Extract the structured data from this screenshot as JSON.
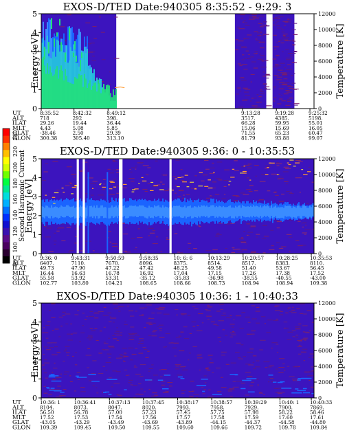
{
  "colorbar": {
    "label": "Second Harmonic Current",
    "ticks": [
      "240",
      "220",
      "200",
      "180",
      "160",
      "140",
      "120",
      "100",
      "80"
    ],
    "colors": [
      "#000000",
      "#2a0030",
      "#4a0060",
      "#5a0a8a",
      "#3a10b0",
      "#1010d0",
      "#0030ff",
      "#0070ff",
      "#00b0ff",
      "#00dddd",
      "#00e890",
      "#00ff40",
      "#70ff00",
      "#d0ff00",
      "#ffff00",
      "#ffc000",
      "#ff8000",
      "#ff3000",
      "#ff0000"
    ]
  },
  "colors": {
    "background": "#3c14be",
    "noise": "#7a1e6a",
    "gap": "#ffffff",
    "green": "#22e07a",
    "cyan": "#28c8d8",
    "blue": "#1a64ff",
    "lightblue": "#3a8cff",
    "orange": "#ff9a30",
    "yellow": "#e8d040"
  },
  "chart_data": [
    {
      "type": "heatmap",
      "title": "EXOS-D/TED   Date:940305  8:35:52 - 9:29: 3",
      "ylabel": "Energy [eV]",
      "ylabel_right": "Temperature [K]",
      "ylim": [
        0,
        5
      ],
      "y_ticks": [
        "0",
        "1",
        "2",
        "3",
        "4",
        "5"
      ],
      "y2lim": [
        0,
        12000
      ],
      "y2_ticks": [
        "0",
        "2000",
        "4000",
        "6000",
        "8000",
        "10000",
        "12000"
      ],
      "data_intervals": [
        [
          0.0,
          0.275
        ],
        [
          0.71,
          0.825
        ],
        [
          0.848,
          0.928
        ]
      ],
      "ephemeris": {
        "labels": [
          "UT",
          "ALT",
          "ILAT",
          "MLT",
          "GLAT",
          "GLON"
        ],
        "columns": [
          {
            "x": 0.0,
            "values": [
              "8:35:52",
              "718",
              "29.26",
              "4.43",
              "-38.46",
              "300.38"
            ]
          },
          {
            "x": 0.12,
            "values": [
              "8:42:32",
              "292",
              "19.44",
              "5.08",
              "2.50",
              "305.40"
            ]
          },
          {
            "x": 0.245,
            "values": [
              "8:49:12",
              "398.",
              "36.44",
              "5.85",
              "29.39",
              "313.10"
            ]
          },
          {
            "x": 0.738,
            "values": [
              "9:13:28",
              "3517.",
              "66.28",
              "15.06",
              "71.55",
              "81.79"
            ]
          },
          {
            "x": 0.862,
            "values": [
              "9:19:28",
              "4385.",
              "59.95",
              "15.69",
              "65.23",
              "93.88"
            ]
          },
          {
            "x": 0.985,
            "values": [
              "9:25:32",
              "5198.",
              "55.01",
              "16.05",
              "60.47",
              "99.07"
            ]
          }
        ]
      }
    },
    {
      "type": "heatmap",
      "title": "EXOS-D/TED   Date:940305  9:36: 0 - 10:35:53",
      "ylabel": "Energy [eV]",
      "ylabel_right": "Temperature [K]",
      "ylim": [
        0,
        5
      ],
      "y_ticks": [
        "0",
        "1",
        "2",
        "3",
        "4",
        "5"
      ],
      "y2lim": [
        0,
        12000
      ],
      "y2_ticks": [
        "0",
        "2000",
        "4000",
        "6000",
        "8000",
        "10000",
        "12000"
      ],
      "gaps": [
        [
          0.13,
          0.138
        ],
        [
          0.152,
          0.16
        ],
        [
          0.285,
          0.298
        ],
        [
          0.47,
          0.478
        ]
      ],
      "ephemeris": {
        "labels": [
          "UT",
          "ALT",
          "ILAT",
          "MLT",
          "GLAT",
          "GLON"
        ],
        "columns": [
          {
            "x": 0.0,
            "values": [
              "9:36: 0",
              "6407.",
              "49.73",
              "16.44",
              "55.58",
              "102.77"
            ]
          },
          {
            "x": 0.115,
            "values": [
              "9:43:31",
              "7110.",
              "47.90",
              "16.63",
              "53.92",
              "103.80"
            ]
          },
          {
            "x": 0.24,
            "values": [
              "9:50:59",
              "7670.",
              "47.22",
              "16.78",
              "53.31",
              "104.21"
            ]
          },
          {
            "x": 0.365,
            "values": [
              "9:58:35",
              "8096.",
              "47.42",
              "16.92",
              "-35.12",
              "108.65"
            ]
          },
          {
            "x": 0.49,
            "values": [
              "10: 6: 6",
              "8375.",
              "48.25",
              "17.04",
              "-35.83",
              "108.66"
            ]
          },
          {
            "x": 0.615,
            "values": [
              "10:13:29",
              "8514.",
              "49.58",
              "17.15",
              "-36.98",
              "108.73"
            ]
          },
          {
            "x": 0.74,
            "values": [
              "10:20:57",
              "8517.",
              "51.40",
              "17.26",
              "-38.55",
              "108.94"
            ]
          },
          {
            "x": 0.865,
            "values": [
              "10:28:25",
              "8383.",
              "53.67",
              "17.38",
              "-40.55",
              "108.94"
            ]
          },
          {
            "x": 0.99,
            "values": [
              "10:35:53",
              "8110.",
              "56.45",
              "17.52",
              "-43.00",
              "109.38"
            ]
          }
        ]
      }
    },
    {
      "type": "heatmap",
      "title": "EXOS-D/TED   Date:940305  10:36: 1 - 10:40:33",
      "ylabel": "Energy [eV]",
      "ylabel_right": "Temperature [K]",
      "ylim": [
        0,
        5
      ],
      "y_ticks": [
        "0",
        "1",
        "2",
        "3",
        "4",
        "5"
      ],
      "y2lim": [
        0,
        12000
      ],
      "y2_ticks": [
        "0",
        "2000",
        "4000",
        "6000",
        "8000",
        "10000",
        "12000"
      ],
      "ephemeris": {
        "labels": [
          "UT",
          "ALT",
          "ILAT",
          "MLT",
          "GLAT",
          "GLON"
        ],
        "columns": [
          {
            "x": 0.0,
            "values": [
              "10:36: 1",
              "8104.",
              "56.50",
              "17.52",
              "-43.05",
              "109.39"
            ]
          },
          {
            "x": 0.125,
            "values": [
              "10:36:41",
              "8073.",
              "56.78",
              "17.53",
              "-43.29",
              "109.45"
            ]
          },
          {
            "x": 0.25,
            "values": [
              "10:37:13",
              "8047.",
              "57.00",
              "17.54",
              "-43.49",
              "109.50"
            ]
          },
          {
            "x": 0.375,
            "values": [
              "10:37:45",
              "8020.",
              "57.23",
              "17.56",
              "-43.69",
              "109.55"
            ]
          },
          {
            "x": 0.5,
            "values": [
              "10:38:17",
              "7993.",
              "57.45",
              "17.57",
              "-43.89",
              "109.60"
            ]
          },
          {
            "x": 0.625,
            "values": [
              "10:38:57",
              "7958.",
              "57.75",
              "17.58",
              "-44.15",
              "109.66"
            ]
          },
          {
            "x": 0.75,
            "values": [
              "10:39:29",
              "7929.",
              "57.98",
              "17.59",
              "-44.37",
              "109.72"
            ]
          },
          {
            "x": 0.875,
            "values": [
              "10:40: 1",
              "7900.",
              "58.22",
              "17.60",
              "-44.58",
              "109.78"
            ]
          },
          {
            "x": 0.99,
            "values": [
              "10:40:33",
              "7869.",
              "58.46",
              "17.61",
              "-44.80",
              "109.84"
            ]
          }
        ]
      }
    }
  ]
}
